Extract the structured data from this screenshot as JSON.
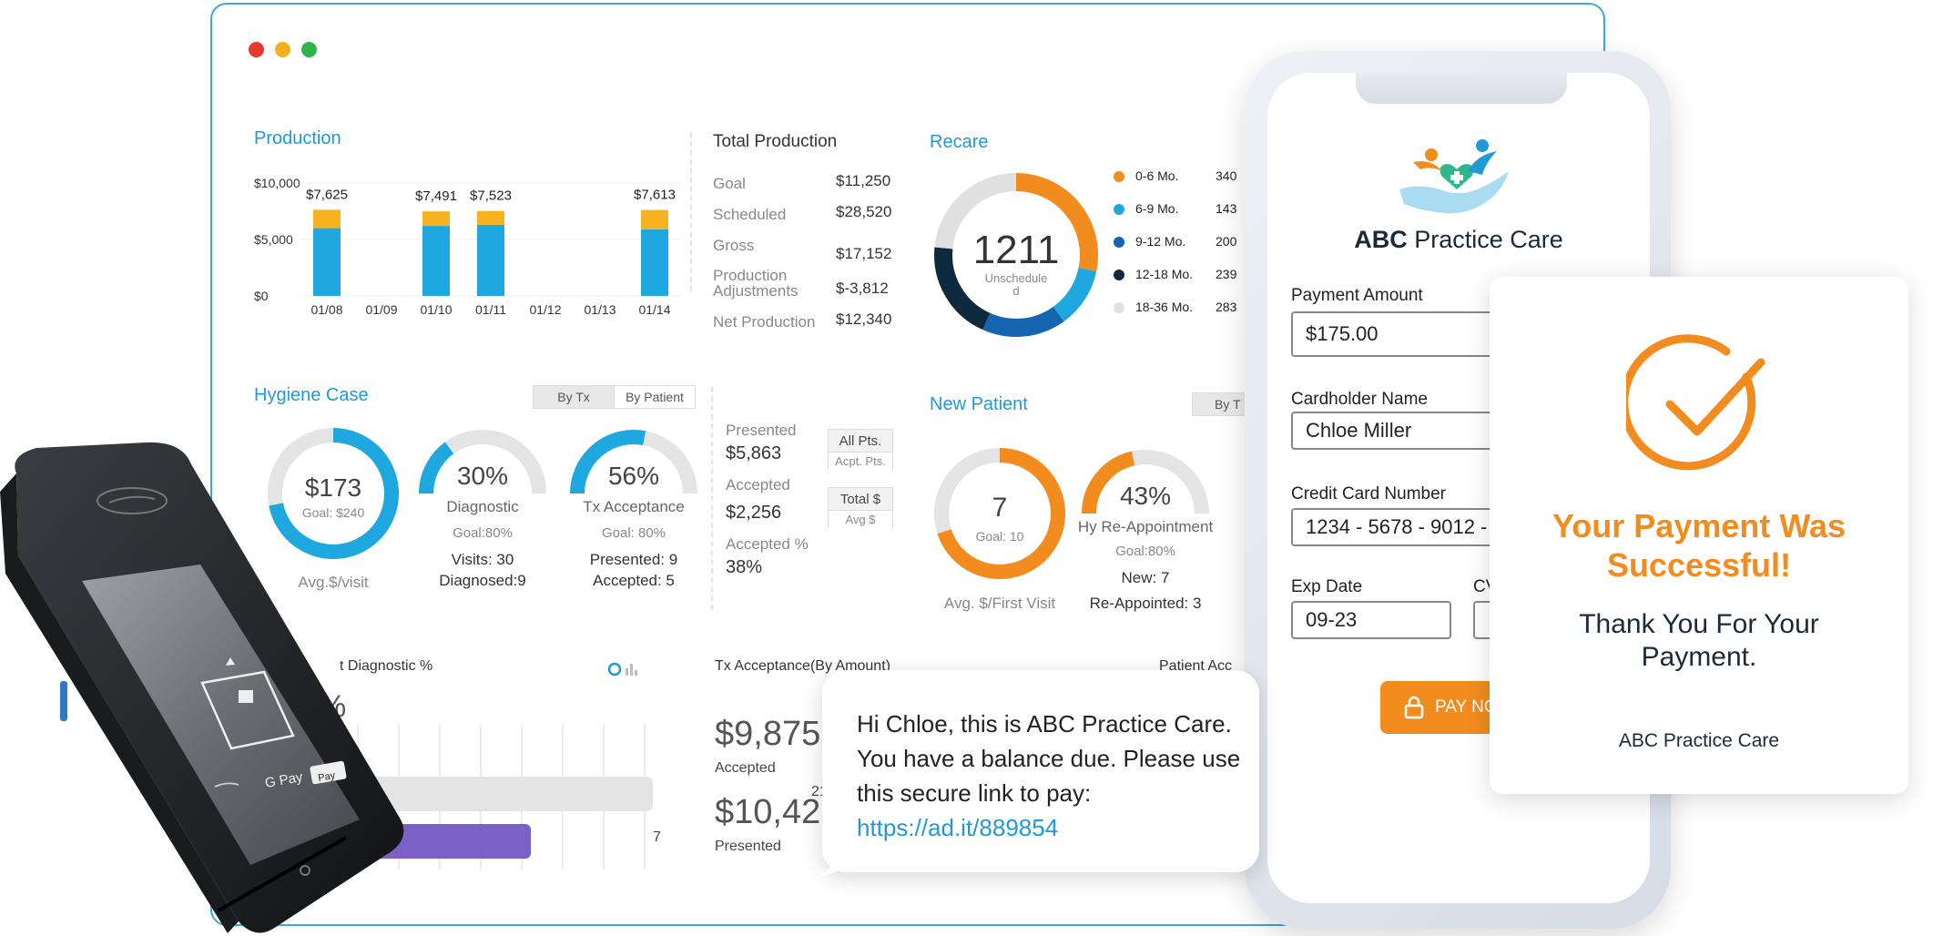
{
  "production": {
    "title": "Production",
    "y_ticks": [
      "$10,000",
      "$5,000",
      "$0"
    ],
    "chart_data": {
      "type": "bar",
      "categories": [
        "01/08",
        "01/09",
        "01/10",
        "01/11",
        "01/12",
        "01/13",
        "01/14"
      ],
      "series": [
        {
          "values": [
            6000,
            0,
            6200,
            6300,
            0,
            0,
            5900
          ]
        },
        {
          "values": [
            1625,
            0,
            1291,
            1223,
            0,
            0,
            1713
          ]
        }
      ],
      "labels": [
        "$7,625",
        "",
        "$7,491",
        "$7,523",
        "",
        "",
        "$7,613"
      ],
      "ylim": [
        0,
        10000
      ],
      "colors": [
        "#1fa7e0",
        "#f7b21f"
      ]
    }
  },
  "total_production": {
    "title": "Total Production",
    "rows": [
      {
        "label": "Goal",
        "value": "$11,250"
      },
      {
        "label": "Scheduled",
        "value": "$28,520"
      },
      {
        "label": "Gross Production",
        "value": "$17,152"
      },
      {
        "label": "Adjustments",
        "value": "$-3,812"
      },
      {
        "label": "Net Production",
        "value": "$12,340"
      }
    ]
  },
  "recare": {
    "title": "Recare",
    "center_value": "1211",
    "center_label": "Unscheduled",
    "chart_data": {
      "type": "pie",
      "categories": [
        "0-6 Mo.",
        "6-9 Mo.",
        "9-12 Mo.",
        "12-18 Mo.",
        "18-36 Mo."
      ],
      "values": [
        340,
        143,
        200,
        239,
        283
      ],
      "colors": [
        "#f28c1e",
        "#1fa7e0",
        "#1565b0",
        "#0d2a3f",
        "#e0e0e0"
      ]
    },
    "legend": [
      {
        "label": "0-6 Mo.",
        "value": "340"
      },
      {
        "label": "6-9 Mo.",
        "value": "143"
      },
      {
        "label": "9-12 Mo.",
        "value": "200"
      },
      {
        "label": "12-18 Mo.",
        "value": "239"
      },
      {
        "label": "18-36 Mo.",
        "value": "283"
      }
    ]
  },
  "hygiene": {
    "title": "Hygiene Case",
    "tabs": [
      "By Tx",
      "By Patient"
    ],
    "avg_visit": {
      "value": "$173",
      "goal": "Goal: $240",
      "caption": "Avg.$/visit",
      "percent": 72
    },
    "diagnostic": {
      "value": "30%",
      "label": "Diagnostic",
      "goal": "Goal:80%",
      "visits": "Visits: 30",
      "diagnosed": "Diagnosed:9",
      "percent": 30
    },
    "tx_acceptance": {
      "value": "56%",
      "label": "Tx Acceptance",
      "goal": "Goal: 80%",
      "presented": "Presented: 9",
      "accepted": "Accepted: 5",
      "percent": 56
    }
  },
  "presented_block": {
    "presented_label": "Presented",
    "presented_value": "$5,863",
    "accepted_label": "Accepted",
    "accepted_value": "$2,256",
    "accepted_pct_label": "Accepted %",
    "accepted_pct_value": "38%",
    "tag1_top": "All Pts.",
    "tag1_bottom": "Acpt. Pts.",
    "tag2_top": "Total $",
    "tag2_bottom": "Avg $"
  },
  "new_patient": {
    "title": "New Patient",
    "tab": "By T",
    "first_visit": {
      "value": "7",
      "goal": "Goal: 10",
      "caption": "Avg. $/First Visit",
      "percent": 70
    },
    "reappointment": {
      "value": "43%",
      "label": "Hy Re-Appointment",
      "goal": "Goal:80%",
      "new": "New: 7",
      "reappointed": "Re-Appointed: 3",
      "percent": 43
    }
  },
  "bottom": {
    "diag_title": "t Diagnostic %",
    "diag_partial": "%",
    "bar1": {
      "value": "21"
    },
    "bar2": {
      "value": "7"
    },
    "tx_title": "Tx Acceptance(By Amount)",
    "accepted_amount": "$9,875",
    "accepted_label": "Accepted",
    "presented_amount": "$10,42",
    "presented_label": "Presented",
    "patient_title": "Patient Acc"
  },
  "sms": {
    "text": "Hi Chloe, this is ABC Practice Care. You have a balance due. Please use this secure link to pay:",
    "link": "https://ad.it/889854"
  },
  "phone": {
    "brand_bold": "ABC",
    "brand_rest": " Practice Care",
    "payment_amount_label": "Payment Amount",
    "payment_amount": "$175.00",
    "cardholder_label": "Cardholder Name",
    "cardholder": "Chloe Miller",
    "card_number_label": "Credit Card Number",
    "card_number": "1234 - 5678 - 9012 -",
    "exp_label": "Exp Date",
    "exp_value": "09-23",
    "cvv_label": "CV",
    "pay_label": "PAY NO"
  },
  "success": {
    "title": "Your Payment Was Successful!",
    "subtitle": "Thank You For Your Payment.",
    "practice": "ABC Practice Care"
  },
  "terminal": {
    "gpay": "G Pay",
    "applepay": "Pay"
  },
  "colors": {
    "accent_blue": "#1f9ad6",
    "orange": "#f28c1e",
    "navy": "#1b2a3a"
  }
}
